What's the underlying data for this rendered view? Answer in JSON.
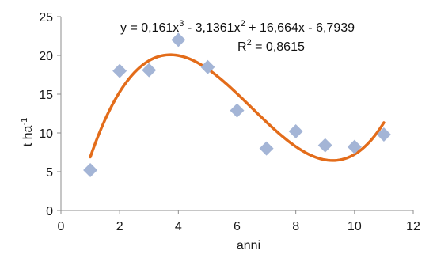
{
  "chart_data": {
    "type": "scatter",
    "xlabel": "anni",
    "ylabel": "t ha",
    "ylabel_sup": "-1",
    "xlim": [
      0,
      12
    ],
    "ylim": [
      0,
      25
    ],
    "xticks": [
      "0",
      "2",
      "4",
      "6",
      "8",
      "10",
      "12"
    ],
    "yticks": [
      "0",
      "5",
      "10",
      "15",
      "20",
      "25"
    ],
    "grid": false,
    "points": [
      {
        "x": 1,
        "y": 5.2
      },
      {
        "x": 2,
        "y": 18.0
      },
      {
        "x": 3,
        "y": 18.1
      },
      {
        "x": 4,
        "y": 22.0
      },
      {
        "x": 5,
        "y": 18.5
      },
      {
        "x": 6,
        "y": 12.9
      },
      {
        "x": 7,
        "y": 8.0
      },
      {
        "x": 8,
        "y": 10.2
      },
      {
        "x": 9,
        "y": 8.4
      },
      {
        "x": 10,
        "y": 8.2
      },
      {
        "x": 11,
        "y": 9.8
      }
    ],
    "trendline": {
      "type": "polynomial-3",
      "coefficients": [
        0.161,
        -3.1361,
        16.664,
        -6.7939
      ],
      "x_range": [
        1,
        11
      ],
      "equation_parts": [
        "y = 0,161x",
        "3",
        " - 3,1361x",
        "2",
        " + 16,664x - 6,7939"
      ],
      "r2_parts": [
        "R",
        "2",
        " = 0,8615"
      ]
    },
    "colors": {
      "marker": "#a4b5d6",
      "trendline": "#e36c1a",
      "axis": "#8c8c8c"
    }
  }
}
